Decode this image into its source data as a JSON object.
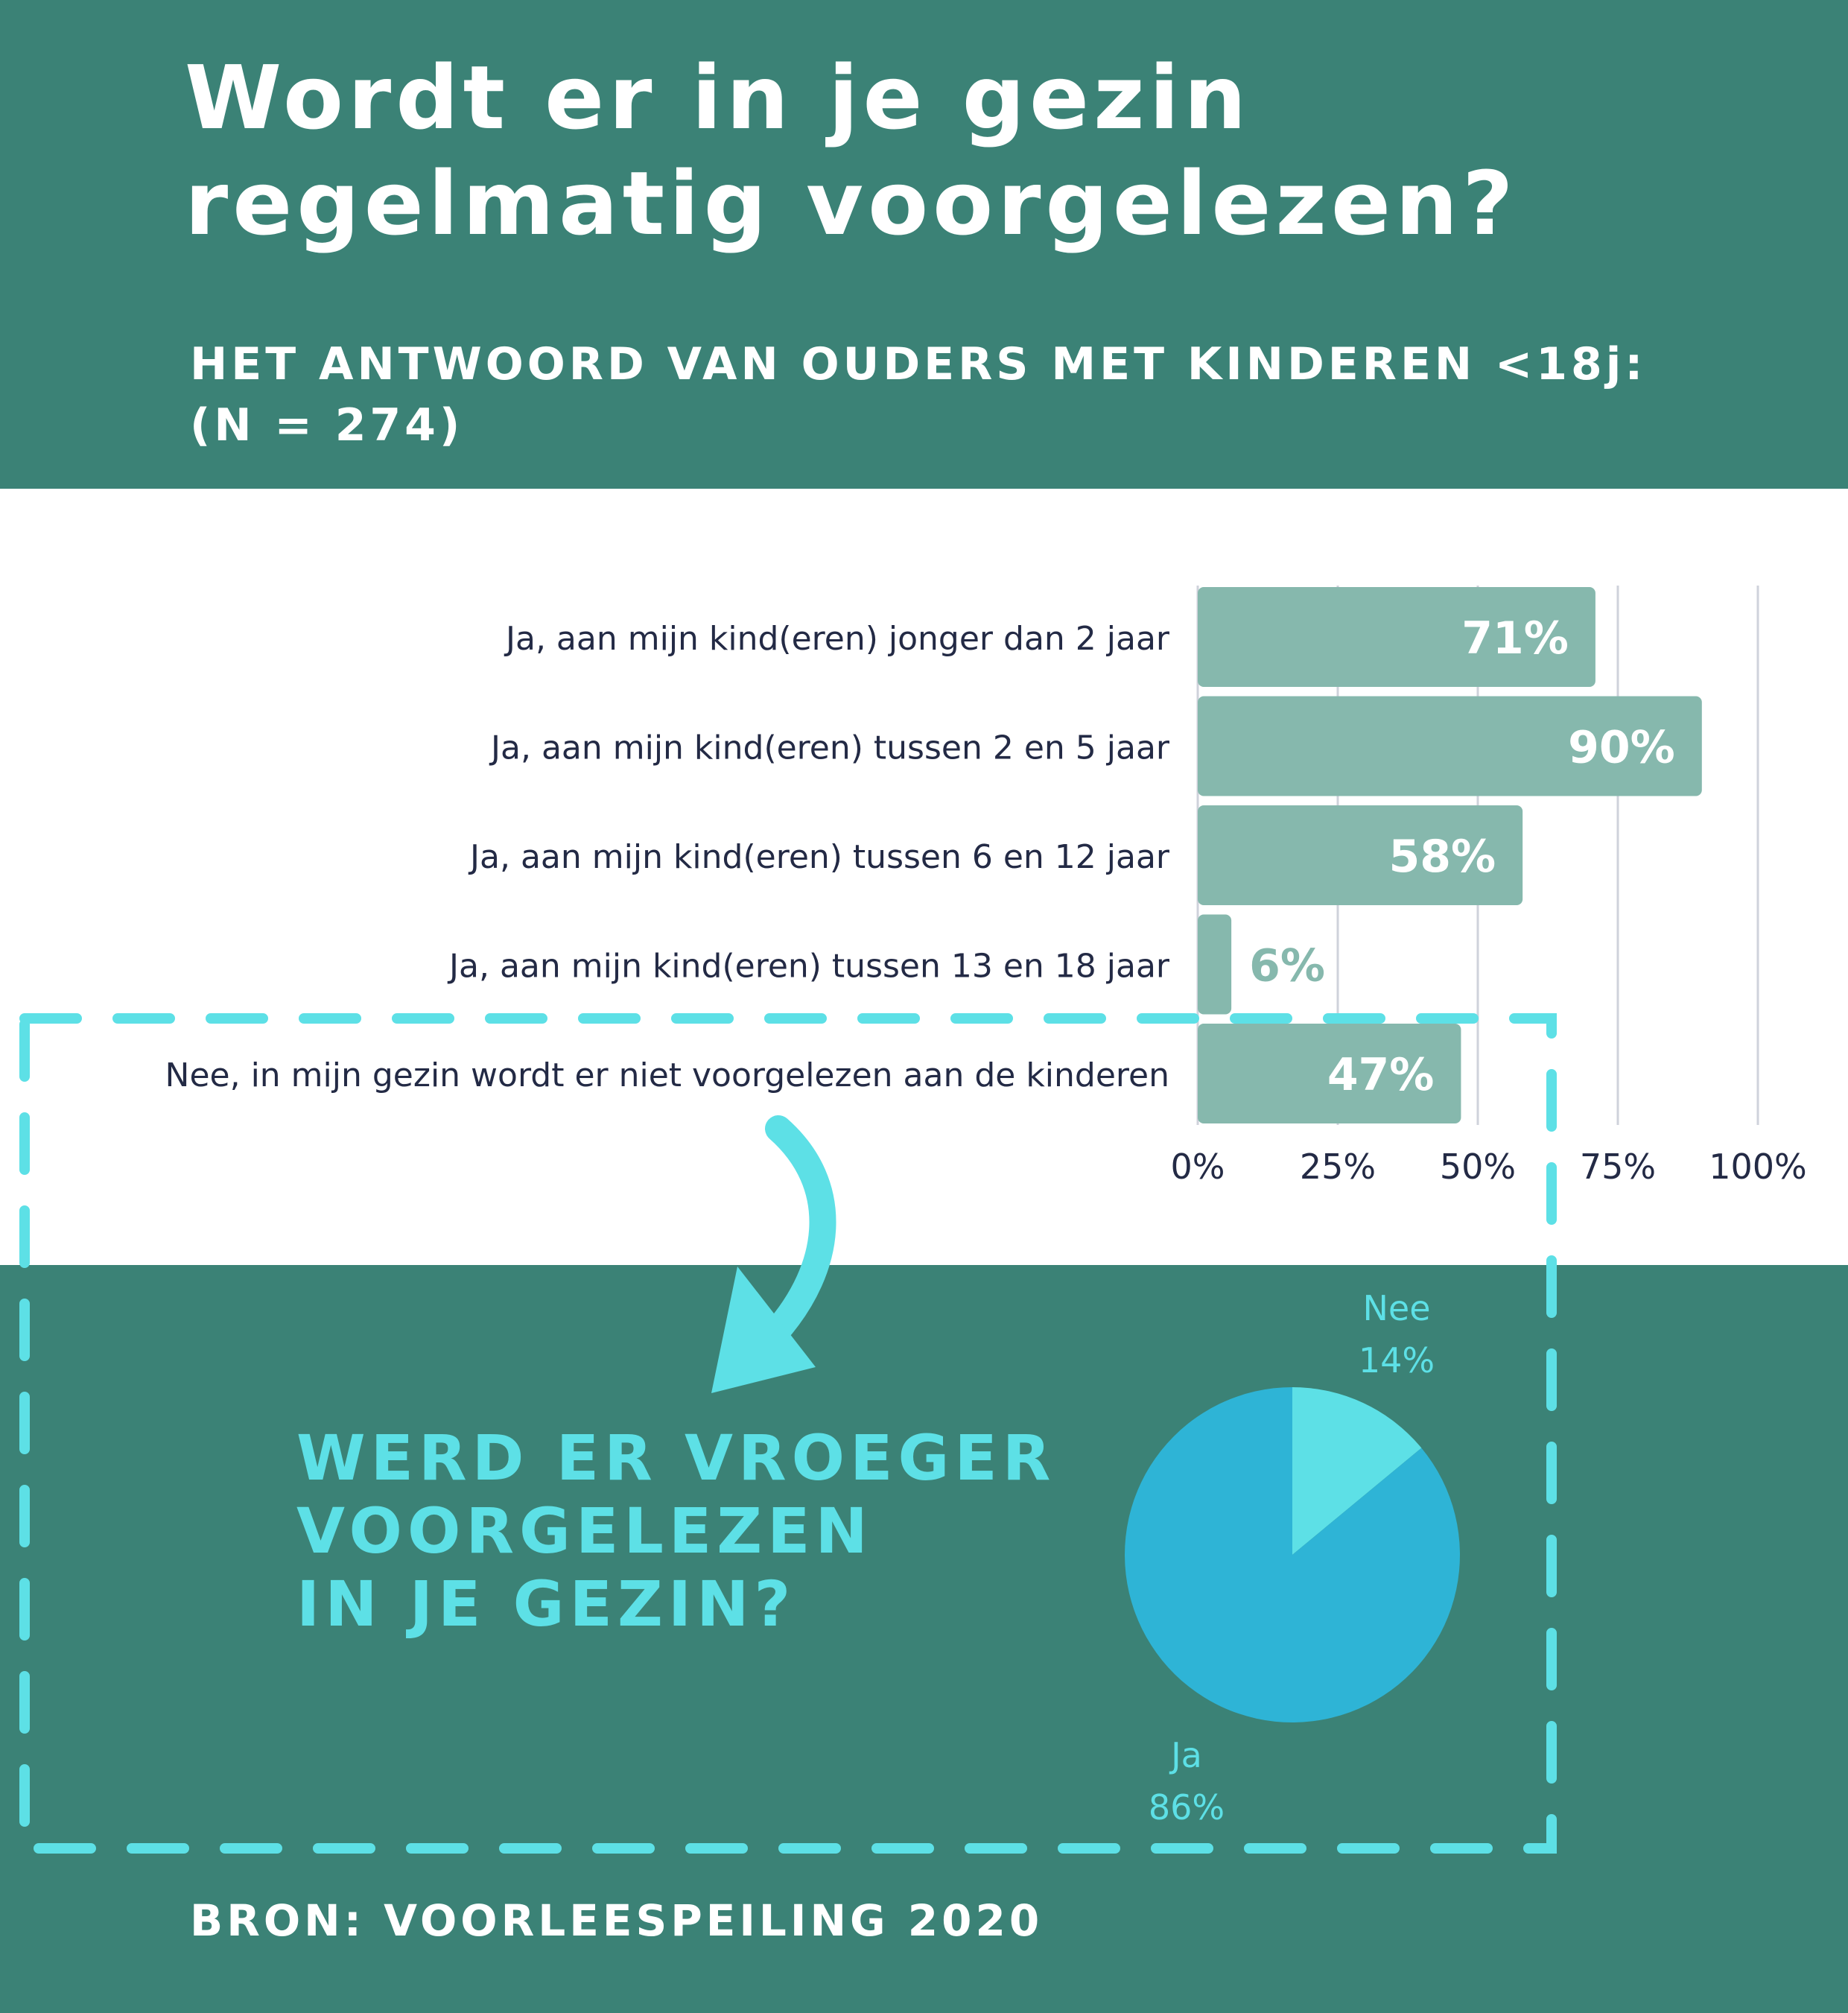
{
  "header": {
    "title_line1": "Wordt er in je gezin",
    "title_line2": "regelmatig voorgelezen?",
    "subtitle_line1": "HET ANTWOORD VAN OUDERS MET KINDEREN <18j:",
    "subtitle_line2": "(N = 274)"
  },
  "question2": {
    "line1": "WERD ER VROEGER",
    "line2": "VOORGELEZEN",
    "line3": "IN JE GEZIN?"
  },
  "source": "BRON: VOORLEESPEILING 2020",
  "colors": {
    "background_dark": "#3b8276",
    "bar_fill": "#86b8ad",
    "label_text": "#232a45",
    "accent_cyan": "#5de0e6",
    "pie_ja": "#2eb4d6",
    "pie_nee": "#5de0e6"
  },
  "chart_data": [
    {
      "type": "bar",
      "orientation": "horizontal",
      "categories": [
        "Ja, aan mijn kind(eren) jonger dan 2 jaar",
        "Ja, aan mijn kind(eren) tussen 2 en 5 jaar",
        "Ja, aan mijn kind(eren) tussen 6 en 12 jaar",
        "Ja, aan mijn kind(eren) tussen 13 en 18 jaar",
        "Nee, in mijn gezin wordt er niet voorgelezen aan de kinderen"
      ],
      "values": [
        71,
        90,
        58,
        6,
        47
      ],
      "value_labels": [
        "71%",
        "90%",
        "58%",
        "6%",
        "47%"
      ],
      "xlim": [
        0,
        100
      ],
      "x_ticks": [
        0,
        25,
        50,
        75,
        100
      ],
      "x_tick_labels": [
        "0%",
        "25%",
        "50%",
        "75%",
        "100%"
      ],
      "grid": true
    },
    {
      "type": "pie",
      "slices": [
        {
          "label": "Nee",
          "value": 14,
          "value_label": "14%"
        },
        {
          "label": "Ja",
          "value": 86,
          "value_label": "86%"
        }
      ]
    }
  ]
}
